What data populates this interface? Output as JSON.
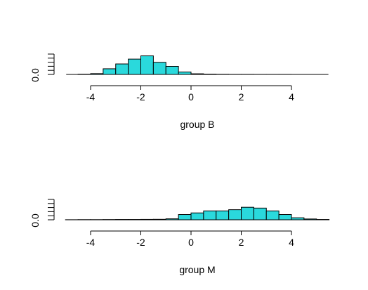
{
  "chart_data": [
    {
      "type": "bar",
      "title": "",
      "xlabel": "group B",
      "ylabel": "",
      "xlim": [
        -5,
        5.5
      ],
      "x_ticks": [
        "-4",
        "-2",
        "0",
        "2",
        "4"
      ],
      "y_tick_label": "0.0",
      "y_minor_ticks": 6,
      "bin_edges": [
        -4.5,
        -4.0,
        -3.5,
        -3.0,
        -2.5,
        -2.0,
        -1.5,
        -1.0,
        -0.5,
        0.0,
        0.5,
        1.0,
        1.5,
        2.0,
        2.5,
        3.0,
        3.5,
        4.0
      ],
      "values": [
        0.003,
        0.01,
        0.07,
        0.13,
        0.19,
        0.23,
        0.15,
        0.1,
        0.03,
        0.008,
        0.004,
        0.002,
        0.001,
        0.001,
        0.0005,
        0.0005,
        0.0005
      ],
      "ylim": [
        0,
        0.24
      ],
      "bar_color": "#2ad9dc"
    },
    {
      "type": "bar",
      "title": "",
      "xlabel": "group M",
      "ylabel": "",
      "xlim": [
        -5,
        5.5
      ],
      "x_ticks": [
        "-4",
        "-2",
        "0",
        "2",
        "4"
      ],
      "y_tick_label": "0.0",
      "y_minor_ticks": 6,
      "bin_edges": [
        -5.0,
        -4.5,
        -4.0,
        -3.5,
        -3.0,
        -2.5,
        -2.0,
        -1.5,
        -1.0,
        -0.5,
        0.0,
        0.5,
        1.0,
        1.5,
        2.0,
        2.5,
        3.0,
        3.5,
        4.0,
        4.5,
        5.0,
        5.5
      ],
      "values": [
        0.001,
        0.002,
        0.002,
        0.003,
        0.004,
        0.004,
        0.005,
        0.006,
        0.012,
        0.065,
        0.085,
        0.11,
        0.11,
        0.125,
        0.155,
        0.145,
        0.11,
        0.065,
        0.025,
        0.01,
        0.004
      ],
      "ylim": [
        0,
        0.24
      ],
      "bar_color": "#2ad9dc"
    }
  ]
}
